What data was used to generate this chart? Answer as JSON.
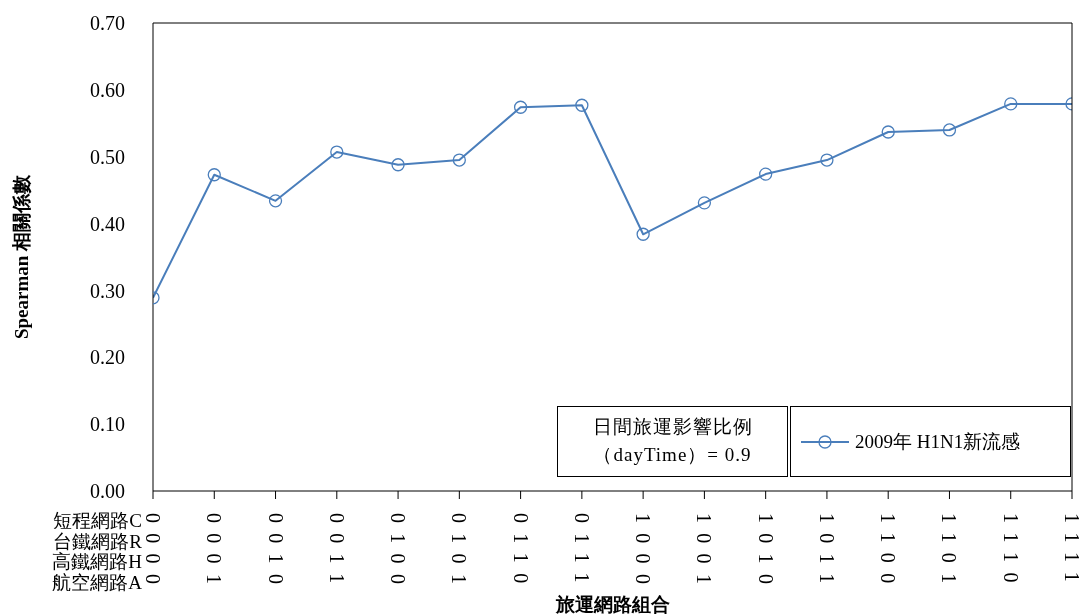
{
  "chart_data": {
    "type": "line",
    "xlabel": "旅運網路組合",
    "ylabel": "Spearman 相關係數",
    "categories": [
      "0000",
      "0001",
      "0010",
      "0011",
      "0100",
      "0101",
      "0110",
      "0111",
      "1000",
      "1001",
      "1010",
      "1011",
      "1100",
      "1101",
      "1110",
      "1111"
    ],
    "series": [
      {
        "name": "2009年 H1N1新流感",
        "color": "#4a7ebb",
        "values": [
          0.289,
          0.473,
          0.434,
          0.507,
          0.488,
          0.495,
          0.574,
          0.577,
          0.384,
          0.431,
          0.474,
          0.495,
          0.537,
          0.54,
          0.579,
          0.579
        ]
      }
    ],
    "ylim": [
      0,
      0.7
    ],
    "yticks": [
      {
        "value": 0,
        "label": "0.00"
      },
      {
        "value": 0.1,
        "label": "0.10"
      },
      {
        "value": 0.2,
        "label": "0.20"
      },
      {
        "value": 0.3,
        "label": "0.30"
      },
      {
        "value": 0.4,
        "label": "0.40"
      },
      {
        "value": 0.5,
        "label": "0.50"
      },
      {
        "value": 0.6,
        "label": "0.60"
      },
      {
        "value": 0.7,
        "label": "0.70"
      }
    ],
    "annotations": [
      "短程網路C",
      "台鐵網路R",
      "高鐵網路H",
      "航空網路A",
      "日間旅運影響比例（dayTime）= 0.9"
    ],
    "grid": false,
    "legend": "bottom right",
    "marker": "circle",
    "line_style": "solid"
  }
}
